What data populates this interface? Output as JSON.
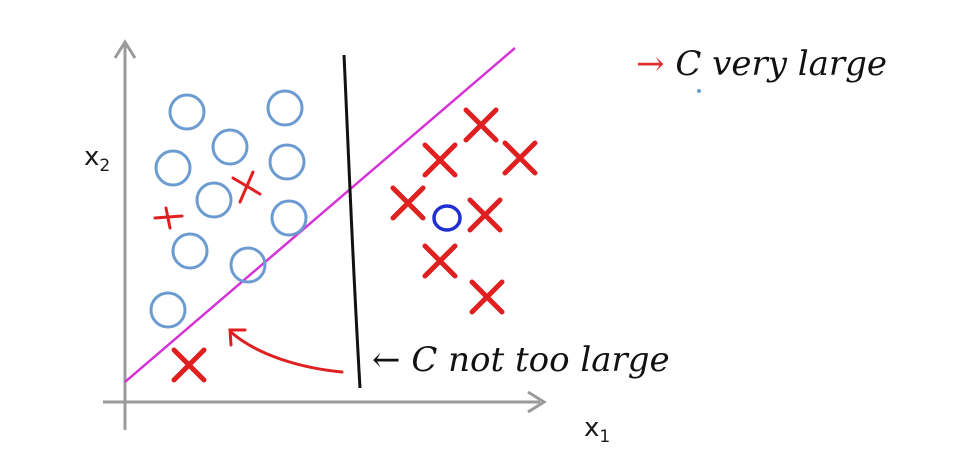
{
  "axes": {
    "x_label": "x",
    "x_sub": "1",
    "y_label": "x",
    "y_sub": "2"
  },
  "annotations": {
    "top_arrow": "→",
    "top_text": "C  very large",
    "bottom_arrow": "←",
    "bottom_text": "C  not too large"
  },
  "colors": {
    "positive": "#e02020",
    "negative": "#6b9bd1",
    "outlier": "#1f2fd1",
    "boundary_large_c": "#d633d6",
    "boundary_small_c": "#111111",
    "axis": "#9a9a9a"
  }
}
